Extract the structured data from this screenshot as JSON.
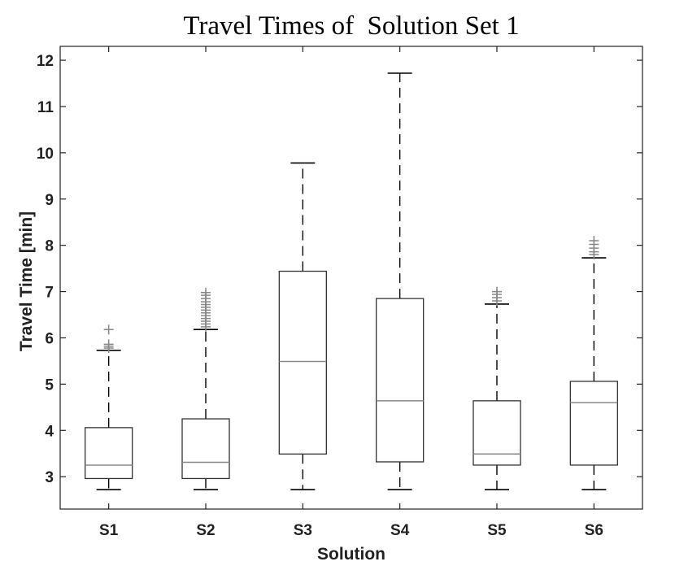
{
  "chart_data": {
    "type": "box",
    "title": "Travel Times of  Solution Set 1",
    "xlabel": "Solution",
    "ylabel": "Travel Time [min]",
    "ylim": [
      2.3,
      12.3
    ],
    "yticks": [
      3,
      4,
      5,
      6,
      7,
      8,
      9,
      10,
      11,
      12
    ],
    "grid": false,
    "categories": [
      "S1",
      "S2",
      "S3",
      "S4",
      "S5",
      "S6"
    ],
    "boxes": [
      {
        "label": "S1",
        "whisker_low": 2.72,
        "q1": 2.96,
        "median": 3.25,
        "q3": 4.06,
        "whisker_high": 5.73,
        "outliers": [
          5.78,
          5.82,
          5.86,
          6.18
        ]
      },
      {
        "label": "S2",
        "whisker_low": 2.72,
        "q1": 2.96,
        "median": 3.31,
        "q3": 4.25,
        "whisker_high": 6.18,
        "outliers": [
          6.24,
          6.3,
          6.36,
          6.42,
          6.48,
          6.54,
          6.6,
          6.66,
          6.72,
          6.78,
          6.85,
          6.92,
          6.98
        ]
      },
      {
        "label": "S3",
        "whisker_low": 2.72,
        "q1": 3.49,
        "median": 5.49,
        "q3": 7.44,
        "whisker_high": 9.78,
        "outliers": []
      },
      {
        "label": "S4",
        "whisker_low": 2.72,
        "q1": 3.32,
        "median": 4.64,
        "q3": 6.85,
        "whisker_high": 11.72,
        "outliers": []
      },
      {
        "label": "S5",
        "whisker_low": 2.72,
        "q1": 3.25,
        "median": 3.49,
        "q3": 4.64,
        "whisker_high": 6.73,
        "outliers": [
          6.8,
          6.87,
          6.94,
          7.0
        ]
      },
      {
        "label": "S6",
        "whisker_low": 2.72,
        "q1": 3.25,
        "median": 4.6,
        "q3": 5.06,
        "whisker_high": 7.73,
        "outliers": [
          7.8,
          7.86,
          7.94,
          8.02,
          8.1
        ]
      }
    ],
    "colors": {
      "box": "#333333",
      "median": "#888888",
      "outlier": "#888888",
      "whisker": "#000000"
    }
  }
}
